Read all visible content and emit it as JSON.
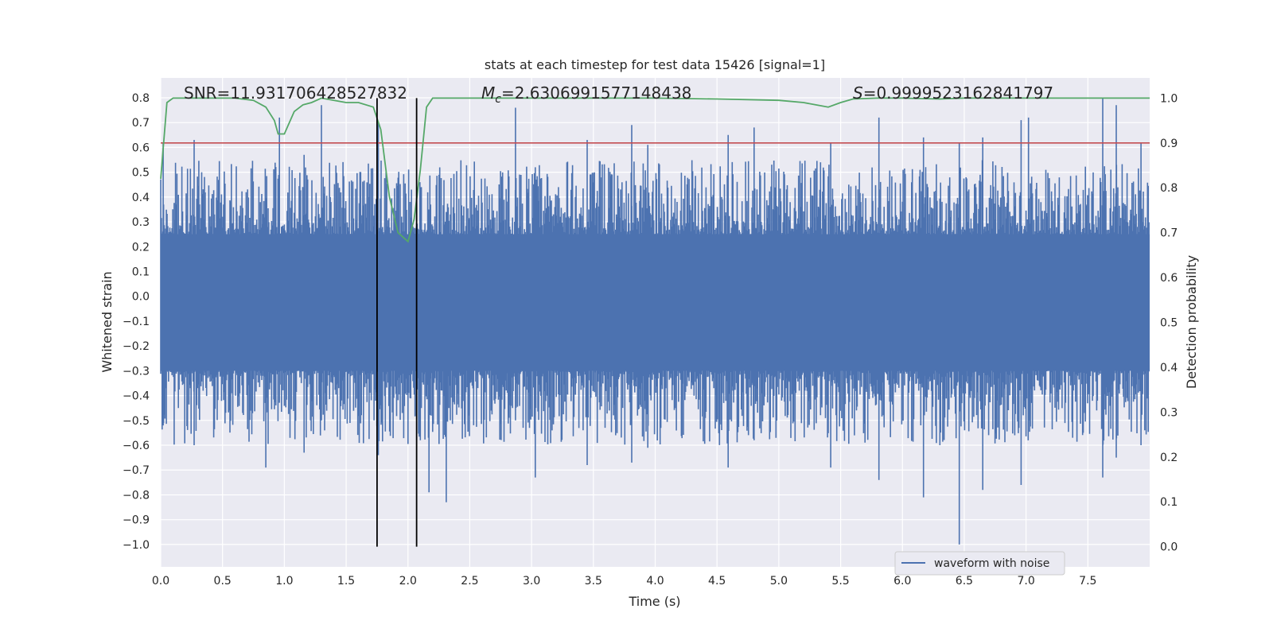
{
  "chart_data": {
    "type": "line",
    "title": "stats at each timestep for test data 15426 [signal=1]",
    "xlabel": "Time (s)",
    "ylabel_left": "Whitened strain",
    "ylabel_right": "Detection probability",
    "xlim": [
      0.0,
      8.0
    ],
    "ylim_left": [
      -1.09,
      0.88
    ],
    "ylim_right": [
      -0.045,
      1.045
    ],
    "xticks": [
      0.0,
      0.5,
      1.0,
      1.5,
      2.0,
      2.5,
      3.0,
      3.5,
      4.0,
      4.5,
      5.0,
      5.5,
      6.0,
      6.5,
      7.0,
      7.5
    ],
    "xtick_labels": [
      "0.0",
      "0.5",
      "1.0",
      "1.5",
      "2.0",
      "2.5",
      "3.0",
      "3.5",
      "4.0",
      "4.5",
      "5.0",
      "5.5",
      "6.0",
      "6.5",
      "7.0",
      "7.5"
    ],
    "yticks_left": [
      0.8,
      0.7,
      0.6,
      0.5,
      0.4,
      0.3,
      0.2,
      0.1,
      0.0,
      -0.1,
      -0.2,
      -0.3,
      -0.4,
      -0.5,
      -0.6,
      -0.7,
      -0.8,
      -0.9,
      -1.0
    ],
    "ytick_labels_left": [
      "0.8",
      "0.7",
      "0.6",
      "0.5",
      "0.4",
      "0.3",
      "0.2",
      "0.1",
      "0.0",
      "−0.1",
      "−0.2",
      "−0.3",
      "−0.4",
      "−0.5",
      "−0.6",
      "−0.7",
      "−0.8",
      "−0.9",
      "−1.0"
    ],
    "yticks_right": [
      1.0,
      0.9,
      0.8,
      0.7,
      0.6,
      0.5,
      0.4,
      0.3,
      0.2,
      0.1,
      0.0
    ],
    "ytick_labels_right": [
      "1.0",
      "0.9",
      "0.8",
      "0.7",
      "0.6",
      "0.5",
      "0.4",
      "0.3",
      "0.2",
      "0.1",
      "0.0"
    ],
    "annotations": {
      "snr": "SNR=11.931706428527832",
      "mc_symbol": "M",
      "mc_subscript": "c",
      "mc_value": "=2.6306991577148438",
      "s_symbol": "S",
      "s_value": "=0.9999523162841797"
    },
    "vertical_markers": [
      1.75,
      2.07
    ],
    "threshold": {
      "probability": 0.9,
      "color": "#c44e52"
    },
    "waveform": {
      "name": "waveform with noise",
      "color": "#4c72b0",
      "body_range": [
        -0.3,
        0.25
      ],
      "peaks": [
        [
          0.02,
          0.62,
          -0.52
        ],
        [
          0.27,
          0.63,
          -0.6
        ],
        [
          0.85,
          0.38,
          -0.69
        ],
        [
          0.96,
          0.72,
          -0.42
        ],
        [
          1.3,
          0.77,
          -0.5
        ],
        [
          1.16,
          0.57,
          -0.63
        ],
        [
          1.76,
          0.7,
          -0.64
        ],
        [
          2.1,
          0.36,
          -0.58
        ],
        [
          2.17,
          0.35,
          -0.79
        ],
        [
          2.31,
          0.34,
          -0.83
        ],
        [
          2.87,
          0.76,
          -0.5
        ],
        [
          3.03,
          0.52,
          -0.73
        ],
        [
          3.45,
          0.63,
          -0.68
        ],
        [
          3.81,
          0.69,
          -0.67
        ],
        [
          3.94,
          0.61,
          -0.61
        ],
        [
          4.59,
          0.65,
          -0.69
        ],
        [
          4.8,
          0.68,
          -0.58
        ],
        [
          5.42,
          0.62,
          -0.69
        ],
        [
          5.81,
          0.72,
          -0.74
        ],
        [
          6.17,
          0.64,
          -0.81
        ],
        [
          6.46,
          0.62,
          -1.0
        ],
        [
          6.65,
          0.64,
          -0.78
        ],
        [
          6.96,
          0.71,
          -0.76
        ],
        [
          7.02,
          0.72,
          -0.5
        ],
        [
          7.62,
          0.8,
          -0.73
        ],
        [
          7.73,
          0.77,
          -0.65
        ],
        [
          7.93,
          0.62,
          -0.6
        ]
      ]
    },
    "probability": {
      "color": "#55a868",
      "x": [
        0.0,
        0.05,
        0.1,
        0.3,
        0.6,
        0.75,
        0.85,
        0.92,
        0.95,
        1.0,
        1.08,
        1.15,
        1.22,
        1.3,
        1.5,
        1.6,
        1.72,
        1.78,
        1.85,
        1.92,
        2.0,
        2.05,
        2.1,
        2.15,
        2.2,
        2.3,
        2.5,
        3.0,
        4.0,
        4.5,
        5.0,
        5.2,
        5.3,
        5.4,
        5.5,
        5.6,
        5.8,
        6.0,
        6.3,
        6.5,
        7.0,
        7.5,
        8.0
      ],
      "y": [
        0.82,
        0.99,
        1.0,
        1.0,
        1.0,
        0.995,
        0.98,
        0.95,
        0.92,
        0.92,
        0.97,
        0.985,
        0.99,
        1.0,
        0.99,
        0.99,
        0.98,
        0.93,
        0.78,
        0.7,
        0.68,
        0.73,
        0.84,
        0.98,
        1.0,
        1.0,
        1.0,
        1.0,
        1.0,
        0.998,
        0.995,
        0.99,
        0.985,
        0.98,
        0.99,
        0.998,
        1.0,
        1.0,
        0.998,
        1.0,
        1.0,
        1.0,
        1.0
      ]
    },
    "legend": {
      "label": "waveform with noise",
      "location": "lower center-right"
    },
    "grid": true
  }
}
